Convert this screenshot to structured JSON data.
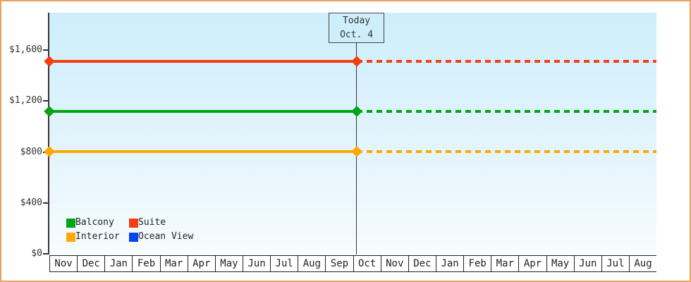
{
  "chart_data": {
    "type": "line",
    "title": "",
    "x_axis": {
      "label": "",
      "categories": [
        "Nov",
        "Dec",
        "Jan",
        "Feb",
        "Mar",
        "Apr",
        "May",
        "Jun",
        "Jul",
        "Aug",
        "Sep",
        "Oct",
        "Nov",
        "Dec",
        "Jan",
        "Feb",
        "Mar",
        "Apr",
        "May",
        "Jun",
        "Jul",
        "Aug"
      ]
    },
    "y_axis": {
      "label": "",
      "ticks": [
        {
          "label": "$0",
          "value": 0
        },
        {
          "label": "$400",
          "value": 400
        },
        {
          "label": "$800",
          "value": 800
        },
        {
          "label": "$1,200",
          "value": 1200
        },
        {
          "label": "$1,600",
          "value": 1600
        }
      ],
      "ylim": [
        0,
        1890
      ]
    },
    "series": [
      {
        "name": "Balcony",
        "color": "#00a513",
        "value": 1120,
        "line": "flat; solid before today, dotted after"
      },
      {
        "name": "Suite",
        "color": "#f53e10",
        "value": 1510,
        "line": "flat; solid before today, dotted after"
      },
      {
        "name": "Interior",
        "color": "#ffa800",
        "value": 805,
        "line": "flat; solid before today, dotted after"
      },
      {
        "name": "Ocean View",
        "color": "#0046f0",
        "value": null,
        "line": "legend only, no line plotted"
      }
    ],
    "today": {
      "line1": "Today",
      "line2": "Oct. 4",
      "month_index": 11,
      "day": 4,
      "days_in_month": 31
    },
    "legend": {
      "position": "inside-bottom-left",
      "items": [
        "Balcony",
        "Suite",
        "Interior",
        "Ocean View"
      ]
    },
    "grid": false
  },
  "colors": {
    "frame_border": "#e8a25c",
    "plot_bg_top": "#cdeefb",
    "plot_bg_bottom": "#f8fdff",
    "axis": "#333333",
    "text": "#333333",
    "today_line": "#333333",
    "today_box_bg": "#cfeefb",
    "today_box_border": "#444444"
  }
}
